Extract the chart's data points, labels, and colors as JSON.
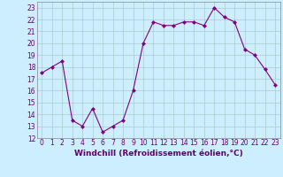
{
  "x": [
    0,
    1,
    2,
    3,
    4,
    5,
    6,
    7,
    8,
    9,
    10,
    11,
    12,
    13,
    14,
    15,
    16,
    17,
    18,
    19,
    20,
    21,
    22,
    23
  ],
  "y": [
    17.5,
    18.0,
    18.5,
    13.5,
    13.0,
    14.5,
    12.5,
    13.0,
    13.5,
    16.0,
    20.0,
    21.8,
    21.5,
    21.5,
    21.8,
    21.8,
    21.5,
    23.0,
    22.2,
    21.8,
    19.5,
    19.0,
    17.8,
    16.5
  ],
  "line_color": "#800080",
  "marker": "D",
  "marker_size": 2.0,
  "bg_color": "#cceeff",
  "grid_color": "#aacccc",
  "xlabel": "Windchill (Refroidissement éolien,°C)",
  "ylim": [
    12,
    23.5
  ],
  "yticks": [
    12,
    13,
    14,
    15,
    16,
    17,
    18,
    19,
    20,
    21,
    22,
    23
  ],
  "xticks": [
    0,
    1,
    2,
    3,
    4,
    5,
    6,
    7,
    8,
    9,
    10,
    11,
    12,
    13,
    14,
    15,
    16,
    17,
    18,
    19,
    20,
    21,
    22,
    23
  ],
  "tick_fontsize": 5.5,
  "xlabel_fontsize": 6.5
}
